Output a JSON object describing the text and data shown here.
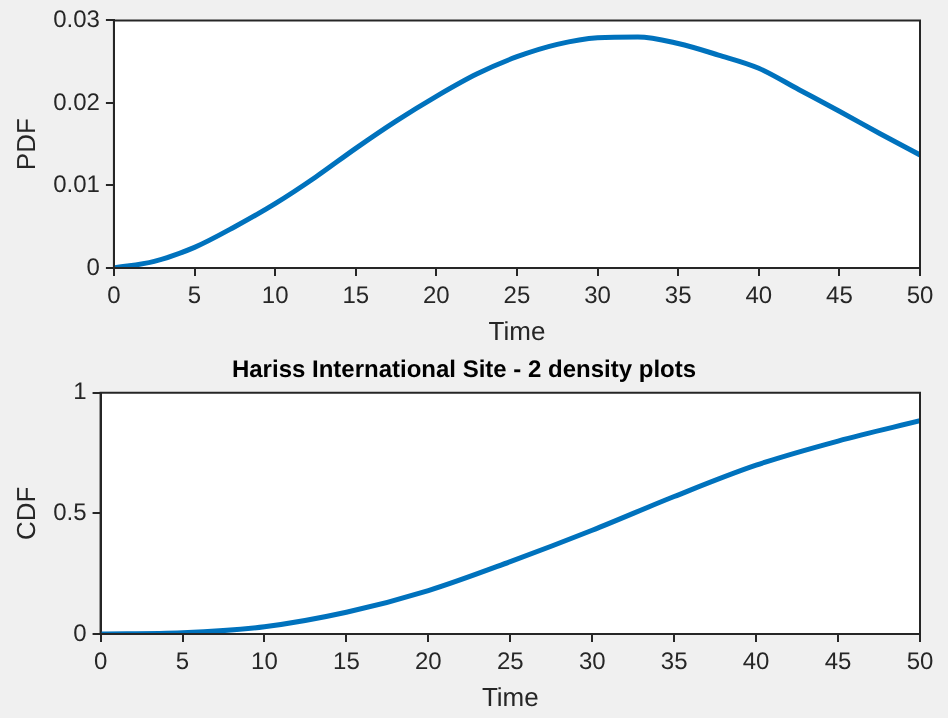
{
  "chart_data": [
    {
      "type": "line",
      "xlabel": "Time",
      "ylabel": "PDF",
      "x": [
        0,
        2.5,
        5,
        7.5,
        10,
        12.5,
        15,
        17.5,
        20,
        22.5,
        25,
        27.5,
        30,
        32.5,
        35,
        37.5,
        40,
        42.5,
        45,
        47.5,
        50
      ],
      "series": [
        {
          "color": "#0072bd",
          "values": [
            0,
            0.0008,
            0.0025,
            0.005,
            0.0078,
            0.011,
            0.0145,
            0.0178,
            0.0208,
            0.0235,
            0.0256,
            0.0271,
            0.0279,
            0.028,
            0.0272,
            0.0258,
            0.0242,
            0.0216,
            0.019,
            0.0163,
            0.0137
          ]
        }
      ],
      "xlim": [
        0,
        50
      ],
      "xticks": [
        0,
        5,
        10,
        15,
        20,
        25,
        30,
        35,
        40,
        45,
        50
      ],
      "ylim": [
        0,
        0.03
      ],
      "yticks": [
        0,
        0.01,
        0.02,
        0.03
      ]
    },
    {
      "type": "line",
      "title": "Hariss International Site - 2 density plots",
      "xlabel": "Time",
      "ylabel": "CDF",
      "x": [
        0,
        5,
        10,
        15,
        20,
        25,
        30,
        35,
        40,
        45,
        50
      ],
      "series": [
        {
          "color": "#0072bd",
          "values": [
            0,
            0.005,
            0.03,
            0.09,
            0.18,
            0.3,
            0.43,
            0.57,
            0.7,
            0.8,
            0.884
          ]
        }
      ],
      "xlim": [
        0,
        50
      ],
      "xticks": [
        0,
        5,
        10,
        15,
        20,
        25,
        30,
        35,
        40,
        45,
        50
      ],
      "ylim": [
        0,
        1
      ],
      "yticks": [
        0,
        0.5,
        1
      ]
    }
  ]
}
